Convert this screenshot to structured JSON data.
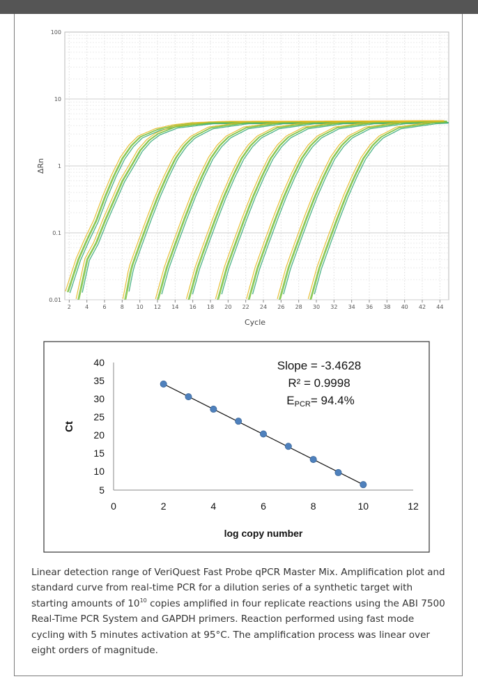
{
  "amplification_chart": {
    "y_tick_labels": [
      "100",
      "10",
      "1",
      "0.1",
      "0.01"
    ],
    "x_tick_labels": [
      "2",
      "4",
      "6",
      "8",
      "10",
      "12",
      "14",
      "16",
      "18",
      "20",
      "22",
      "24",
      "26",
      "28",
      "30",
      "32",
      "34",
      "36",
      "38",
      "40",
      "42",
      "44"
    ],
    "xlabel": "Cycle",
    "ylabel": "ΔRn"
  },
  "standard_curve": {
    "y_tick_labels": [
      "40",
      "35",
      "30",
      "25",
      "20",
      "15",
      "10",
      "5"
    ],
    "x_tick_labels": [
      "0",
      "2",
      "4",
      "6",
      "8",
      "10",
      "12"
    ],
    "xlabel": "log copy number",
    "ylabel": "Ct",
    "slope_text": "Slope = -3.4628",
    "r2_text": "R² = 0.9998",
    "epcr_prefix": "E",
    "epcr_sub": "PCR",
    "epcr_value": "= 94.4%"
  },
  "caption": {
    "part1": "Linear detection range of VeriQuest Fast Probe qPCR Master Mix. Amplification plot and standard curve from real-time PCR for a dilution series of a synthetic target with starting amounts of 10",
    "exponent": "10",
    "part2": " copies amplified in four replicate reactions using the ABI 7500 Real-Time PCR System and GAPDH primers. Reaction performed using fast mode cycling with 5 minutes activation at 95°C. The amplification process was linear over eight orders of magnitude."
  },
  "colors": {
    "curve_green": "#7cc242",
    "curve_teal": "#3aaa7a",
    "curve_yellow": "#e6b81e",
    "point_blue": "#4f81bd",
    "frame": "#555555"
  },
  "chart_data": [
    {
      "type": "line",
      "title": "",
      "xlabel": "Cycle",
      "ylabel": "ΔRn",
      "yscale": "log",
      "xlim": [
        1.5,
        45
      ],
      "ylim": [
        0.01,
        100
      ],
      "grid": true,
      "plateau": 4.6,
      "series": [
        {
          "values": [
            [
              1.8,
              0.013
            ],
            [
              3,
              0.04
            ],
            [
              4,
              0.08
            ],
            [
              5,
              0.15
            ],
            [
              6,
              0.34
            ],
            [
              7,
              0.7
            ],
            [
              8,
              1.3
            ],
            [
              9,
              2.0
            ],
            [
              10,
              2.7
            ],
            [
              12,
              3.5
            ],
            [
              14,
              4.0
            ],
            [
              16,
              4.3
            ],
            [
              20,
              4.5
            ],
            [
              44.8,
              4.6
            ]
          ]
        },
        {
          "values": [
            [
              3,
              0.01
            ],
            [
              4,
              0.04
            ],
            [
              5,
              0.07
            ],
            [
              6,
              0.15
            ],
            [
              7,
              0.3
            ],
            [
              8,
              0.6
            ],
            [
              9,
              1.0
            ],
            [
              10,
              1.7
            ],
            [
              11,
              2.4
            ],
            [
              12,
              3.0
            ],
            [
              14,
              3.8
            ],
            [
              18,
              4.4
            ],
            [
              44.8,
              4.6
            ]
          ]
        },
        {
          "values": [
            [
              8.3,
              0.01
            ],
            [
              9,
              0.03
            ],
            [
              10,
              0.07
            ],
            [
              11,
              0.16
            ],
            [
              12,
              0.35
            ],
            [
              13,
              0.7
            ],
            [
              14,
              1.3
            ],
            [
              15,
              2.0
            ],
            [
              16,
              2.7
            ],
            [
              18,
              3.7
            ],
            [
              22,
              4.4
            ],
            [
              44.8,
              4.6
            ]
          ]
        },
        {
          "values": [
            [
              12,
              0.01
            ],
            [
              13,
              0.03
            ],
            [
              14,
              0.07
            ],
            [
              15,
              0.16
            ],
            [
              16,
              0.35
            ],
            [
              17,
              0.7
            ],
            [
              18,
              1.3
            ],
            [
              19,
              2.0
            ],
            [
              20,
              2.7
            ],
            [
              22,
              3.7
            ],
            [
              26,
              4.4
            ],
            [
              44.8,
              4.6
            ]
          ]
        },
        {
          "values": [
            [
              15.5,
              0.01
            ],
            [
              16.5,
              0.03
            ],
            [
              17.5,
              0.07
            ],
            [
              18.5,
              0.16
            ],
            [
              19.5,
              0.35
            ],
            [
              20.5,
              0.7
            ],
            [
              21.5,
              1.3
            ],
            [
              22.5,
              2.0
            ],
            [
              23.5,
              2.7
            ],
            [
              25.5,
              3.7
            ],
            [
              29.5,
              4.4
            ],
            [
              44.8,
              4.6
            ]
          ]
        },
        {
          "values": [
            [
              18.8,
              0.01
            ],
            [
              19.8,
              0.03
            ],
            [
              20.8,
              0.07
            ],
            [
              21.8,
              0.16
            ],
            [
              22.8,
              0.35
            ],
            [
              23.8,
              0.7
            ],
            [
              24.8,
              1.3
            ],
            [
              25.8,
              2.0
            ],
            [
              26.8,
              2.7
            ],
            [
              28.8,
              3.7
            ],
            [
              32.8,
              4.4
            ],
            [
              44.8,
              4.6
            ]
          ]
        },
        {
          "values": [
            [
              22.3,
              0.01
            ],
            [
              23.3,
              0.03
            ],
            [
              24.3,
              0.07
            ],
            [
              25.3,
              0.16
            ],
            [
              26.3,
              0.35
            ],
            [
              27.3,
              0.7
            ],
            [
              28.3,
              1.3
            ],
            [
              29.3,
              2.0
            ],
            [
              30.3,
              2.7
            ],
            [
              32.3,
              3.7
            ],
            [
              36.3,
              4.4
            ],
            [
              44.8,
              4.6
            ]
          ]
        },
        {
          "values": [
            [
              25.8,
              0.01
            ],
            [
              26.8,
              0.03
            ],
            [
              27.8,
              0.07
            ],
            [
              28.8,
              0.16
            ],
            [
              29.8,
              0.35
            ],
            [
              30.8,
              0.7
            ],
            [
              31.8,
              1.3
            ],
            [
              32.8,
              2.0
            ],
            [
              33.8,
              2.7
            ],
            [
              35.8,
              3.7
            ],
            [
              39.8,
              4.4
            ],
            [
              44.8,
              4.6
            ]
          ]
        },
        {
          "values": [
            [
              29.3,
              0.01
            ],
            [
              30.3,
              0.03
            ],
            [
              31.3,
              0.07
            ],
            [
              32.3,
              0.16
            ],
            [
              33.3,
              0.35
            ],
            [
              34.3,
              0.7
            ],
            [
              35.3,
              1.3
            ],
            [
              36.3,
              2.0
            ],
            [
              37.3,
              2.7
            ],
            [
              39.3,
              3.7
            ],
            [
              43.3,
              4.4
            ],
            [
              44.8,
              4.5
            ]
          ]
        }
      ]
    },
    {
      "type": "scatter",
      "title": "",
      "xlabel": "log copy number",
      "ylabel": "Ct",
      "xlim": [
        0,
        12
      ],
      "ylim": [
        5,
        40
      ],
      "x": [
        2,
        3,
        4,
        5,
        6,
        7,
        8,
        9,
        10
      ],
      "y": [
        34.1,
        30.6,
        27.2,
        23.9,
        20.4,
        17.0,
        13.4,
        9.8,
        6.5
      ],
      "trendline": {
        "slope": -3.4628,
        "r2": 0.9998,
        "epcr": 94.4
      },
      "annotations": [
        "Slope = -3.4628",
        "R² = 0.9998",
        "EPCR= 94.4%"
      ]
    }
  ]
}
